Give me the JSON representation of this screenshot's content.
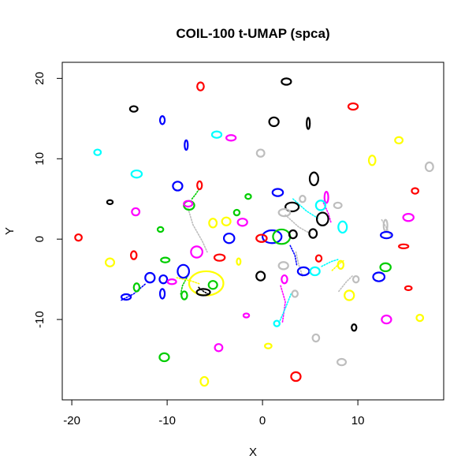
{
  "chart_data": {
    "type": "scatter",
    "title": "COIL-100 t-UMAP (spca)",
    "xlabel": "X",
    "ylabel": "Y",
    "xlim": [
      -21,
      19
    ],
    "ylim": [
      -20,
      22
    ],
    "x_ticks": [
      -20,
      -10,
      0,
      10
    ],
    "y_ticks": [
      -10,
      0,
      10,
      20
    ],
    "x_tick_labels": [
      "-20",
      "-10",
      "0",
      "10"
    ],
    "y_tick_labels": [
      "-10",
      "0",
      "10",
      "20"
    ],
    "grid": false,
    "legend": "none",
    "colors": {
      "black": "#000000",
      "red": "#ff0000",
      "green": "#00cd00",
      "blue": "#0000ff",
      "cyan": "#00ffff",
      "magenta": "#ff00ff",
      "yellow": "#ffff00",
      "gray": "#bebebe"
    },
    "clusters": [
      {
        "color": "red",
        "x": -6.5,
        "y": 19.0,
        "rx": 0.35,
        "ry": 0.5
      },
      {
        "color": "black",
        "x": 2.5,
        "y": 19.6,
        "rx": 0.5,
        "ry": 0.4
      },
      {
        "color": "red",
        "x": 9.5,
        "y": 16.5,
        "rx": 0.5,
        "ry": 0.4
      },
      {
        "color": "black",
        "x": -13.5,
        "y": 16.2,
        "rx": 0.4,
        "ry": 0.35
      },
      {
        "color": "blue",
        "x": -10.5,
        "y": 14.8,
        "rx": 0.25,
        "ry": 0.5
      },
      {
        "color": "black",
        "x": 1.2,
        "y": 14.6,
        "rx": 0.5,
        "ry": 0.55
      },
      {
        "color": "black",
        "x": 4.8,
        "y": 14.4,
        "rx": 0.15,
        "ry": 0.7
      },
      {
        "color": "cyan",
        "x": -4.8,
        "y": 13.0,
        "rx": 0.5,
        "ry": 0.4
      },
      {
        "color": "magenta",
        "x": -3.3,
        "y": 12.6,
        "rx": 0.5,
        "ry": 0.35
      },
      {
        "color": "yellow",
        "x": 14.3,
        "y": 12.3,
        "rx": 0.4,
        "ry": 0.4
      },
      {
        "color": "blue",
        "x": -8.0,
        "y": 11.7,
        "rx": 0.15,
        "ry": 0.6
      },
      {
        "color": "cyan",
        "x": -17.3,
        "y": 10.8,
        "rx": 0.35,
        "ry": 0.35
      },
      {
        "color": "gray",
        "x": -0.2,
        "y": 10.7,
        "rx": 0.4,
        "ry": 0.45
      },
      {
        "color": "yellow",
        "x": 11.5,
        "y": 9.8,
        "rx": 0.35,
        "ry": 0.6
      },
      {
        "color": "gray",
        "x": 17.5,
        "y": 9.0,
        "rx": 0.4,
        "ry": 0.55
      },
      {
        "color": "cyan",
        "x": -13.2,
        "y": 8.1,
        "rx": 0.55,
        "ry": 0.45
      },
      {
        "color": "black",
        "x": 5.4,
        "y": 7.5,
        "rx": 0.45,
        "ry": 0.8
      },
      {
        "color": "blue",
        "x": -8.9,
        "y": 6.6,
        "rx": 0.5,
        "ry": 0.55
      },
      {
        "color": "red",
        "x": -6.6,
        "y": 6.7,
        "rx": 0.25,
        "ry": 0.5
      },
      {
        "color": "red",
        "x": 16.0,
        "y": 6.0,
        "rx": 0.35,
        "ry": 0.35
      },
      {
        "color": "blue",
        "x": 1.6,
        "y": 5.8,
        "rx": 0.55,
        "ry": 0.45
      },
      {
        "color": "green",
        "x": -1.5,
        "y": 5.3,
        "rx": 0.3,
        "ry": 0.3
      },
      {
        "color": "gray",
        "x": 4.2,
        "y": 5.0,
        "rx": 0.3,
        "ry": 0.4
      },
      {
        "color": "magenta",
        "x": 6.7,
        "y": 5.2,
        "rx": 0.2,
        "ry": 0.7
      },
      {
        "color": "green",
        "x": -7.7,
        "y": 4.2,
        "rx": 0.55,
        "ry": 0.55
      },
      {
        "color": "magenta",
        "x": -7.8,
        "y": 4.4,
        "rx": 0.45,
        "ry": 0.35
      },
      {
        "color": "black",
        "x": -16.0,
        "y": 4.6,
        "rx": 0.3,
        "ry": 0.25
      },
      {
        "color": "black",
        "x": 3.1,
        "y": 4.0,
        "rx": 0.7,
        "ry": 0.55
      },
      {
        "color": "cyan",
        "x": 6.1,
        "y": 4.2,
        "rx": 0.5,
        "ry": 0.6
      },
      {
        "color": "gray",
        "x": 7.9,
        "y": 4.2,
        "rx": 0.4,
        "ry": 0.35
      },
      {
        "color": "magenta",
        "x": -13.3,
        "y": 3.4,
        "rx": 0.4,
        "ry": 0.45
      },
      {
        "color": "green",
        "x": -2.7,
        "y": 3.3,
        "rx": 0.3,
        "ry": 0.35
      },
      {
        "color": "gray",
        "x": 2.3,
        "y": 3.3,
        "rx": 0.6,
        "ry": 0.45
      },
      {
        "color": "black",
        "x": 6.3,
        "y": 2.5,
        "rx": 0.6,
        "ry": 0.8
      },
      {
        "color": "magenta",
        "x": 15.3,
        "y": 2.7,
        "rx": 0.55,
        "ry": 0.45
      },
      {
        "color": "yellow",
        "x": -5.2,
        "y": 2.0,
        "rx": 0.4,
        "ry": 0.55
      },
      {
        "color": "yellow",
        "x": -3.8,
        "y": 2.2,
        "rx": 0.45,
        "ry": 0.5
      },
      {
        "color": "magenta",
        "x": -2.1,
        "y": 2.1,
        "rx": 0.5,
        "ry": 0.45
      },
      {
        "color": "cyan",
        "x": 8.4,
        "y": 1.5,
        "rx": 0.45,
        "ry": 0.7
      },
      {
        "color": "green",
        "x": -10.7,
        "y": 1.2,
        "rx": 0.3,
        "ry": 0.3
      },
      {
        "color": "gray",
        "x": 12.9,
        "y": 1.7,
        "rx": 0.2,
        "ry": 0.7
      },
      {
        "color": "blue",
        "x": -3.5,
        "y": 0.1,
        "rx": 0.55,
        "ry": 0.6
      },
      {
        "color": "blue",
        "x": 1.0,
        "y": 0.3,
        "rx": 1.0,
        "ry": 0.8
      },
      {
        "color": "green",
        "x": 2.0,
        "y": 0.3,
        "rx": 0.9,
        "ry": 0.9
      },
      {
        "color": "black",
        "x": 3.2,
        "y": 0.6,
        "rx": 0.4,
        "ry": 0.5
      },
      {
        "color": "black",
        "x": 5.3,
        "y": 0.7,
        "rx": 0.4,
        "ry": 0.55
      },
      {
        "color": "blue",
        "x": 13.0,
        "y": 0.5,
        "rx": 0.6,
        "ry": 0.4
      },
      {
        "color": "red",
        "x": -19.3,
        "y": 0.2,
        "rx": 0.35,
        "ry": 0.4
      },
      {
        "color": "red",
        "x": -0.1,
        "y": 0.1,
        "rx": 0.55,
        "ry": 0.45
      },
      {
        "color": "red",
        "x": 14.8,
        "y": -0.9,
        "rx": 0.5,
        "ry": 0.25
      },
      {
        "color": "red",
        "x": -13.5,
        "y": -2.0,
        "rx": 0.3,
        "ry": 0.5
      },
      {
        "color": "magenta",
        "x": -6.9,
        "y": -1.6,
        "rx": 0.6,
        "ry": 0.7
      },
      {
        "color": "red",
        "x": -4.5,
        "y": -2.3,
        "rx": 0.55,
        "ry": 0.4
      },
      {
        "color": "yellow",
        "x": -2.5,
        "y": -2.8,
        "rx": 0.2,
        "ry": 0.4
      },
      {
        "color": "red",
        "x": 5.9,
        "y": -2.4,
        "rx": 0.3,
        "ry": 0.4
      },
      {
        "color": "green",
        "x": -10.2,
        "y": -2.6,
        "rx": 0.45,
        "ry": 0.3
      },
      {
        "color": "yellow",
        "x": -16.0,
        "y": -2.9,
        "rx": 0.45,
        "ry": 0.5
      },
      {
        "color": "gray",
        "x": 2.2,
        "y": -3.3,
        "rx": 0.5,
        "ry": 0.45
      },
      {
        "color": "yellow",
        "x": 8.2,
        "y": -3.2,
        "rx": 0.3,
        "ry": 0.5
      },
      {
        "color": "green",
        "x": 12.9,
        "y": -3.5,
        "rx": 0.55,
        "ry": 0.5
      },
      {
        "color": "blue",
        "x": -8.3,
        "y": -4.0,
        "rx": 0.6,
        "ry": 0.8
      },
      {
        "color": "blue",
        "x": 4.3,
        "y": -4.0,
        "rx": 0.6,
        "ry": 0.5
      },
      {
        "color": "cyan",
        "x": 5.5,
        "y": -4.0,
        "rx": 0.5,
        "ry": 0.5
      },
      {
        "color": "blue",
        "x": -11.8,
        "y": -4.8,
        "rx": 0.5,
        "ry": 0.6
      },
      {
        "color": "blue",
        "x": -10.4,
        "y": -5.0,
        "rx": 0.4,
        "ry": 0.5
      },
      {
        "color": "black",
        "x": -0.2,
        "y": -4.6,
        "rx": 0.45,
        "ry": 0.55
      },
      {
        "color": "magenta",
        "x": 2.3,
        "y": -5.0,
        "rx": 0.3,
        "ry": 0.5
      },
      {
        "color": "gray",
        "x": 9.8,
        "y": -5.0,
        "rx": 0.3,
        "ry": 0.4
      },
      {
        "color": "blue",
        "x": 12.2,
        "y": -4.7,
        "rx": 0.6,
        "ry": 0.55
      },
      {
        "color": "green",
        "x": -5.2,
        "y": -5.7,
        "rx": 0.45,
        "ry": 0.5
      },
      {
        "color": "magenta",
        "x": -9.5,
        "y": -5.3,
        "rx": 0.45,
        "ry": 0.3
      },
      {
        "color": "yellow",
        "x": -5.9,
        "y": -5.5,
        "rx": 1.8,
        "ry": 1.5
      },
      {
        "color": "green",
        "x": -13.2,
        "y": -6.0,
        "rx": 0.3,
        "ry": 0.5
      },
      {
        "color": "red",
        "x": 15.3,
        "y": -6.1,
        "rx": 0.35,
        "ry": 0.25
      },
      {
        "color": "black",
        "x": -6.2,
        "y": -6.6,
        "rx": 0.7,
        "ry": 0.4
      },
      {
        "color": "green",
        "x": -8.2,
        "y": -7.0,
        "rx": 0.3,
        "ry": 0.5
      },
      {
        "color": "blue",
        "x": -10.5,
        "y": -6.8,
        "rx": 0.25,
        "ry": 0.6
      },
      {
        "color": "gray",
        "x": 3.4,
        "y": -6.8,
        "rx": 0.3,
        "ry": 0.4
      },
      {
        "color": "yellow",
        "x": 9.1,
        "y": -7.0,
        "rx": 0.5,
        "ry": 0.6
      },
      {
        "color": "blue",
        "x": -14.3,
        "y": -7.2,
        "rx": 0.5,
        "ry": 0.35
      },
      {
        "color": "magenta",
        "x": -1.7,
        "y": -9.5,
        "rx": 0.3,
        "ry": 0.25
      },
      {
        "color": "yellow",
        "x": 16.5,
        "y": -9.8,
        "rx": 0.35,
        "ry": 0.4
      },
      {
        "color": "magenta",
        "x": 13.0,
        "y": -10.0,
        "rx": 0.5,
        "ry": 0.5
      },
      {
        "color": "cyan",
        "x": 1.5,
        "y": -10.5,
        "rx": 0.3,
        "ry": 0.35
      },
      {
        "color": "black",
        "x": 9.6,
        "y": -11.0,
        "rx": 0.25,
        "ry": 0.4
      },
      {
        "color": "gray",
        "x": 5.6,
        "y": -12.3,
        "rx": 0.35,
        "ry": 0.45
      },
      {
        "color": "yellow",
        "x": 0.6,
        "y": -13.3,
        "rx": 0.35,
        "ry": 0.3
      },
      {
        "color": "magenta",
        "x": -4.6,
        "y": -13.5,
        "rx": 0.4,
        "ry": 0.45
      },
      {
        "color": "green",
        "x": -10.3,
        "y": -14.7,
        "rx": 0.5,
        "ry": 0.5
      },
      {
        "color": "gray",
        "x": 8.3,
        "y": -15.3,
        "rx": 0.45,
        "ry": 0.4
      },
      {
        "color": "red",
        "x": 3.5,
        "y": -17.1,
        "rx": 0.5,
        "ry": 0.55
      },
      {
        "color": "yellow",
        "x": -6.1,
        "y": -17.7,
        "rx": 0.4,
        "ry": 0.55
      }
    ],
    "trails": [
      {
        "color": "gray",
        "points": [
          [
            -7.8,
            3.8
          ],
          [
            -7.3,
            1.8
          ],
          [
            -6.3,
            -0.3
          ],
          [
            -5.8,
            -1.6
          ]
        ]
      },
      {
        "color": "gray",
        "points": [
          [
            2.4,
            3.0
          ],
          [
            3.8,
            1.5
          ],
          [
            5.0,
            0.7
          ]
        ]
      },
      {
        "color": "gray",
        "points": [
          [
            3.5,
            -1.6
          ],
          [
            3.8,
            -3.2
          ],
          [
            4.2,
            -4.6
          ]
        ]
      },
      {
        "color": "gray",
        "points": [
          [
            12.5,
            2.4
          ],
          [
            13.0,
            1.4
          ],
          [
            13.5,
            0.3
          ]
        ]
      },
      {
        "color": "gray",
        "points": [
          [
            8.0,
            -6.5
          ],
          [
            8.8,
            -5.3
          ],
          [
            9.5,
            -4.5
          ]
        ]
      },
      {
        "color": "magenta",
        "points": [
          [
            1.9,
            -5.8
          ],
          [
            2.4,
            -7.8
          ],
          [
            2.1,
            -10.3
          ]
        ]
      },
      {
        "color": "magenta",
        "points": [
          [
            6.4,
            4.5
          ],
          [
            6.9,
            3.2
          ],
          [
            7.2,
            2.0
          ]
        ]
      },
      {
        "color": "cyan",
        "points": [
          [
            3.0,
            -6.8
          ],
          [
            2.4,
            -8.6
          ],
          [
            1.7,
            -10.5
          ]
        ]
      },
      {
        "color": "cyan",
        "points": [
          [
            3.2,
            5.0
          ],
          [
            4.6,
            3.5
          ],
          [
            5.8,
            2.6
          ]
        ]
      },
      {
        "color": "cyan",
        "points": [
          [
            6.2,
            -3.4
          ],
          [
            7.2,
            -2.8
          ],
          [
            8.0,
            -2.5
          ]
        ]
      },
      {
        "color": "green",
        "points": [
          [
            -7.4,
            5.0
          ],
          [
            -7.0,
            5.6
          ],
          [
            -6.6,
            6.3
          ]
        ]
      },
      {
        "color": "green",
        "points": [
          [
            -7.8,
            -4.5
          ],
          [
            -8.4,
            -5.8
          ],
          [
            -8.6,
            -7.0
          ]
        ]
      },
      {
        "color": "blue",
        "points": [
          [
            -14.8,
            -7.6
          ],
          [
            -13.5,
            -6.8
          ],
          [
            -12.2,
            -5.5
          ]
        ]
      },
      {
        "color": "blue",
        "points": [
          [
            2.9,
            -0.8
          ],
          [
            3.4,
            -2.0
          ],
          [
            3.6,
            -3.3
          ]
        ]
      },
      {
        "color": "yellow",
        "points": [
          [
            7.3,
            -3.9
          ],
          [
            8.0,
            -3.1
          ],
          [
            8.6,
            -2.6
          ]
        ]
      },
      {
        "color": "yellow",
        "points": [
          [
            -9.0,
            -4.8
          ],
          [
            -7.5,
            -5.2
          ],
          [
            -6.5,
            -5.6
          ]
        ]
      },
      {
        "color": "black",
        "points": [
          [
            -6.7,
            -6.0
          ],
          [
            -6.2,
            -6.5
          ],
          [
            -5.6,
            -6.9
          ]
        ]
      }
    ]
  }
}
